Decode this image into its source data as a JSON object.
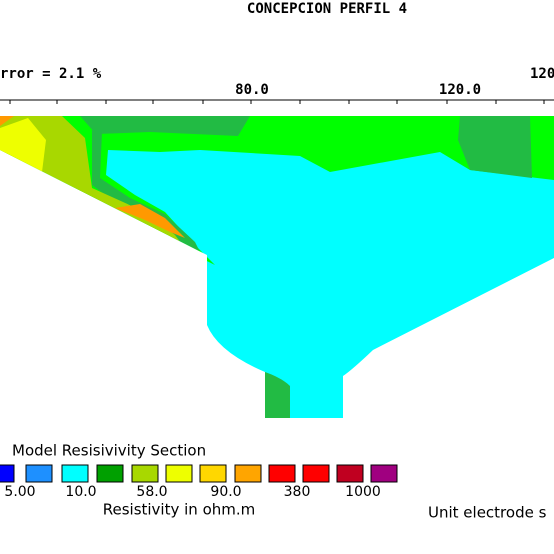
{
  "header": {
    "title": "CONCEPCION PERFIL 4",
    "error_text": "rror = 2.1  %"
  },
  "axis": {
    "tick_labels": [
      "80.0",
      "120.0",
      "120"
    ]
  },
  "section": {
    "title": "Model Resisivivity Section"
  },
  "legend": {
    "labels": [
      "5.00",
      "10.0",
      "58.0",
      "90.0",
      "380",
      "1000"
    ],
    "caption": "Resistivity in ohm.m"
  },
  "footer": {
    "text": "Unit electrode s"
  }
}
